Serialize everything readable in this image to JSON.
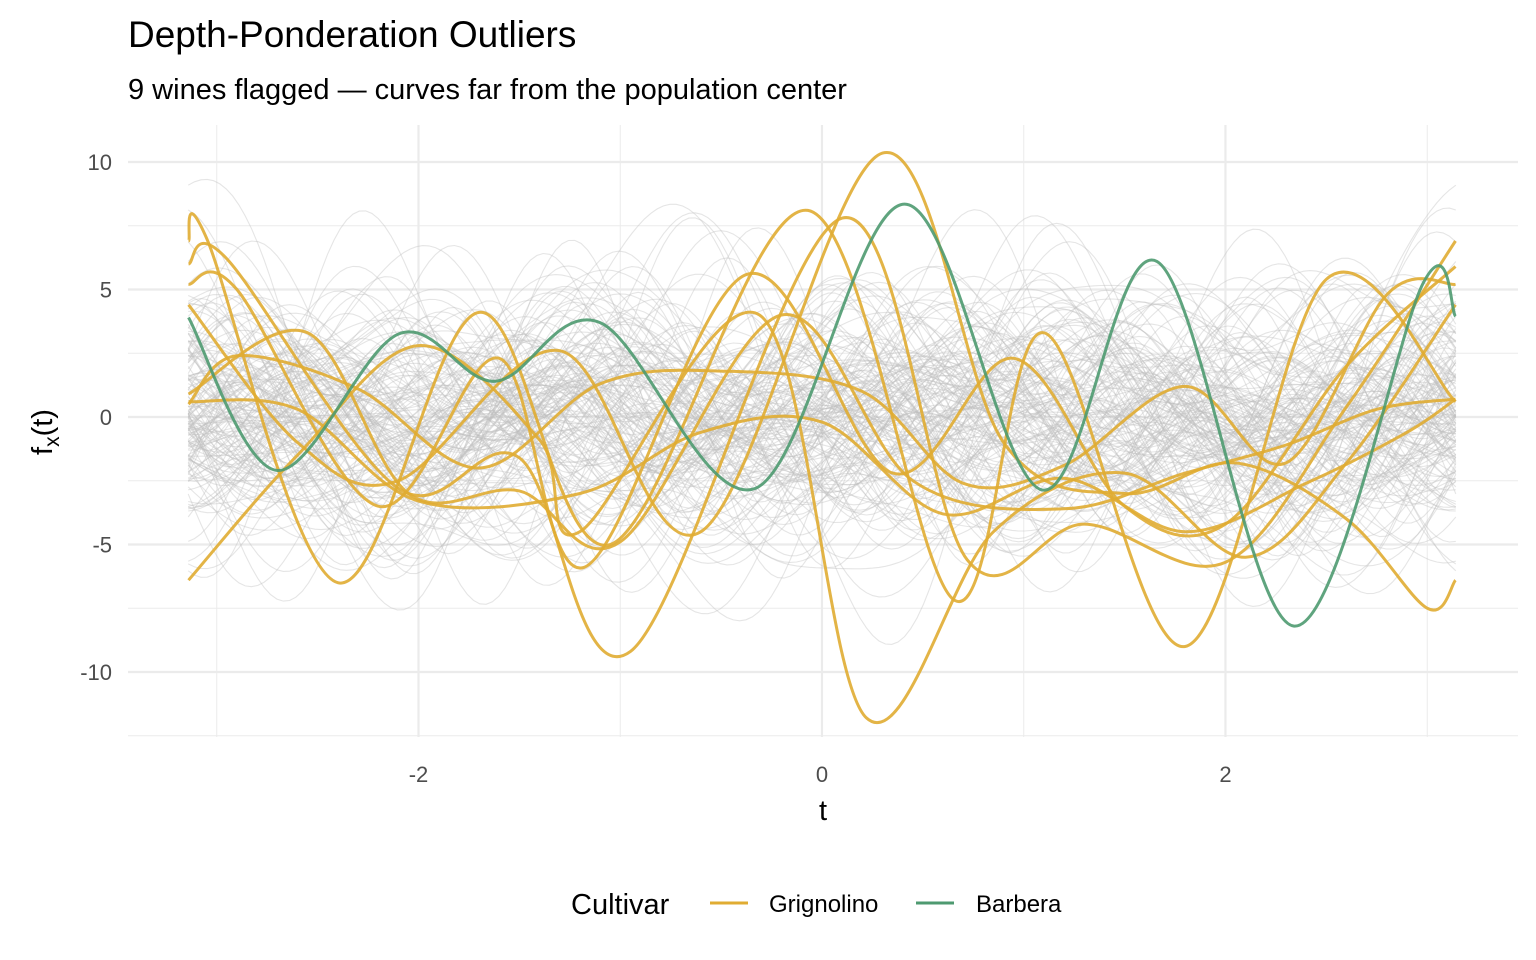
{
  "chart_data": {
    "type": "line",
    "title": "Depth-Ponderation Outliers",
    "subtitle": "9 wines flagged — curves far from the population center",
    "xlabel": "t",
    "ylabel": {
      "main": "f",
      "sub": "x",
      "suffix": "(t)"
    },
    "xlim": [
      -3.44,
      3.45
    ],
    "ylim": [
      -12.55,
      11.45
    ],
    "x_ticks": [
      {
        "value": -2,
        "label": "-2"
      },
      {
        "value": 0,
        "label": "0"
      },
      {
        "value": 2,
        "label": "2"
      }
    ],
    "y_ticks": [
      {
        "value": 10,
        "label": "10"
      },
      {
        "value": 5,
        "label": "5"
      },
      {
        "value": 0,
        "label": "0"
      },
      {
        "value": -5,
        "label": "-5"
      },
      {
        "value": -10,
        "label": "-10"
      }
    ],
    "grid": true,
    "legend": {
      "title": "Cultivar",
      "placement": "bottom",
      "entries": [
        {
          "name": "Grignolino",
          "color": "#E0AC32"
        },
        {
          "name": "Barbera",
          "color": "#4E9A70"
        }
      ]
    },
    "background_population": {
      "color": "#bdbdbd",
      "count": 160,
      "note_t_range": [
        -3.14,
        3.14
      ]
    },
    "series": [
      {
        "name": "Barbera",
        "color": "#4E9A70",
        "points": [
          [
            -3.14,
            3.9
          ],
          [
            -2.7,
            -2.1
          ],
          [
            -2.1,
            3.25
          ],
          [
            -1.62,
            1.4
          ],
          [
            -1.1,
            3.7
          ],
          [
            -0.33,
            -2.8
          ],
          [
            0.41,
            8.35
          ],
          [
            1.09,
            -2.86
          ],
          [
            1.66,
            6.1
          ],
          [
            2.34,
            -8.2
          ],
          [
            2.98,
            5.25
          ],
          [
            3.14,
            3.95
          ]
        ]
      },
      {
        "name": "Grignolino",
        "color": "#E0AC32",
        "points": [
          [
            -3.14,
            6.9
          ],
          [
            -3.05,
            7.0
          ],
          [
            -2.4,
            -6.5
          ],
          [
            -1.7,
            4.1
          ],
          [
            -1.05,
            -5.0
          ],
          [
            -0.07,
            8.1
          ],
          [
            0.66,
            -7.2
          ],
          [
            1.1,
            3.3
          ],
          [
            1.8,
            -9.0
          ],
          [
            2.5,
            5.4
          ],
          [
            3.14,
            0.6
          ]
        ]
      },
      {
        "name": "Grignolino",
        "color": "#E0AC32",
        "points": [
          [
            -3.14,
            6.0
          ],
          [
            -2.95,
            6.2
          ],
          [
            -2.1,
            -2.8
          ],
          [
            -1.5,
            -1.6
          ],
          [
            -0.95,
            -9.2
          ],
          [
            0.1,
            7.8
          ],
          [
            0.72,
            -5.6
          ],
          [
            1.3,
            -4.2
          ],
          [
            2.0,
            -5.7
          ],
          [
            2.6,
            0.4
          ],
          [
            3.14,
            6.9
          ]
        ]
      },
      {
        "name": "Grignolino",
        "color": "#E0AC32",
        "points": [
          [
            -3.14,
            5.2
          ],
          [
            -2.9,
            5.0
          ],
          [
            -2.2,
            -3.5
          ],
          [
            -1.6,
            2.3
          ],
          [
            -1.18,
            -5.9
          ],
          [
            -0.37,
            5.6
          ],
          [
            0.35,
            -2.2
          ],
          [
            0.95,
            2.3
          ],
          [
            1.5,
            -3.5
          ],
          [
            2.0,
            -4.2
          ],
          [
            2.6,
            2.0
          ],
          [
            3.14,
            5.9
          ]
        ]
      },
      {
        "name": "Grignolino",
        "color": "#E0AC32",
        "points": [
          [
            -3.14,
            4.4
          ],
          [
            -2.6,
            -1.0
          ],
          [
            -2.1,
            -2.5
          ],
          [
            -1.3,
            2.6
          ],
          [
            -0.6,
            -4.5
          ],
          [
            0.3,
            10.35
          ],
          [
            0.9,
            -1.0
          ],
          [
            1.5,
            -3.0
          ],
          [
            2.05,
            -1.8
          ],
          [
            2.6,
            -4.0
          ],
          [
            3.0,
            -7.5
          ],
          [
            3.14,
            -6.4
          ]
        ]
      },
      {
        "name": "Grignolino",
        "color": "#E0AC32",
        "points": [
          [
            -3.14,
            0.9
          ],
          [
            -2.55,
            3.3
          ],
          [
            -2.05,
            -3.0
          ],
          [
            -1.5,
            -2.9
          ],
          [
            -1.0,
            -4.9
          ],
          [
            -0.2,
            4.0
          ],
          [
            0.45,
            -2.5
          ],
          [
            1.2,
            -3.6
          ],
          [
            1.8,
            -2.2
          ],
          [
            2.3,
            -1.1
          ],
          [
            2.75,
            0.3
          ],
          [
            3.14,
            0.7
          ]
        ]
      },
      {
        "name": "Grignolino",
        "color": "#E0AC32",
        "points": [
          [
            -3.14,
            0.6
          ],
          [
            -2.6,
            0.3
          ],
          [
            -2.0,
            -3.3
          ],
          [
            -1.2,
            -3.0
          ],
          [
            -0.6,
            -0.6
          ],
          [
            0.0,
            -0.2
          ],
          [
            0.6,
            -3.8
          ],
          [
            1.2,
            -2.4
          ],
          [
            1.8,
            -4.5
          ],
          [
            2.4,
            -2.6
          ],
          [
            2.9,
            -0.6
          ],
          [
            3.14,
            0.7
          ]
        ]
      },
      {
        "name": "Grignolino",
        "color": "#E0AC32",
        "points": [
          [
            -3.14,
            0.5
          ],
          [
            -2.9,
            2.4
          ],
          [
            -2.3,
            1.1
          ],
          [
            -1.7,
            -2.0
          ],
          [
            -1.1,
            1.3
          ],
          [
            -0.5,
            1.8
          ],
          [
            0.2,
            1.0
          ],
          [
            0.7,
            -2.6
          ],
          [
            1.2,
            -1.9
          ],
          [
            1.8,
            1.2
          ],
          [
            2.3,
            -1.8
          ],
          [
            2.8,
            4.8
          ],
          [
            3.14,
            5.2
          ]
        ]
      },
      {
        "name": "Grignolino",
        "color": "#E0AC32",
        "points": [
          [
            -3.14,
            -6.4
          ],
          [
            -2.6,
            -1.5
          ],
          [
            -2.0,
            2.8
          ],
          [
            -1.4,
            -0.9
          ],
          [
            -1.2,
            -4.5
          ],
          [
            -0.31,
            4.0
          ],
          [
            0.22,
            -11.8
          ],
          [
            0.85,
            -4.5
          ],
          [
            1.5,
            -2.2
          ],
          [
            2.1,
            -5.5
          ],
          [
            2.6,
            -1.8
          ],
          [
            3.14,
            4.4
          ]
        ]
      }
    ]
  }
}
